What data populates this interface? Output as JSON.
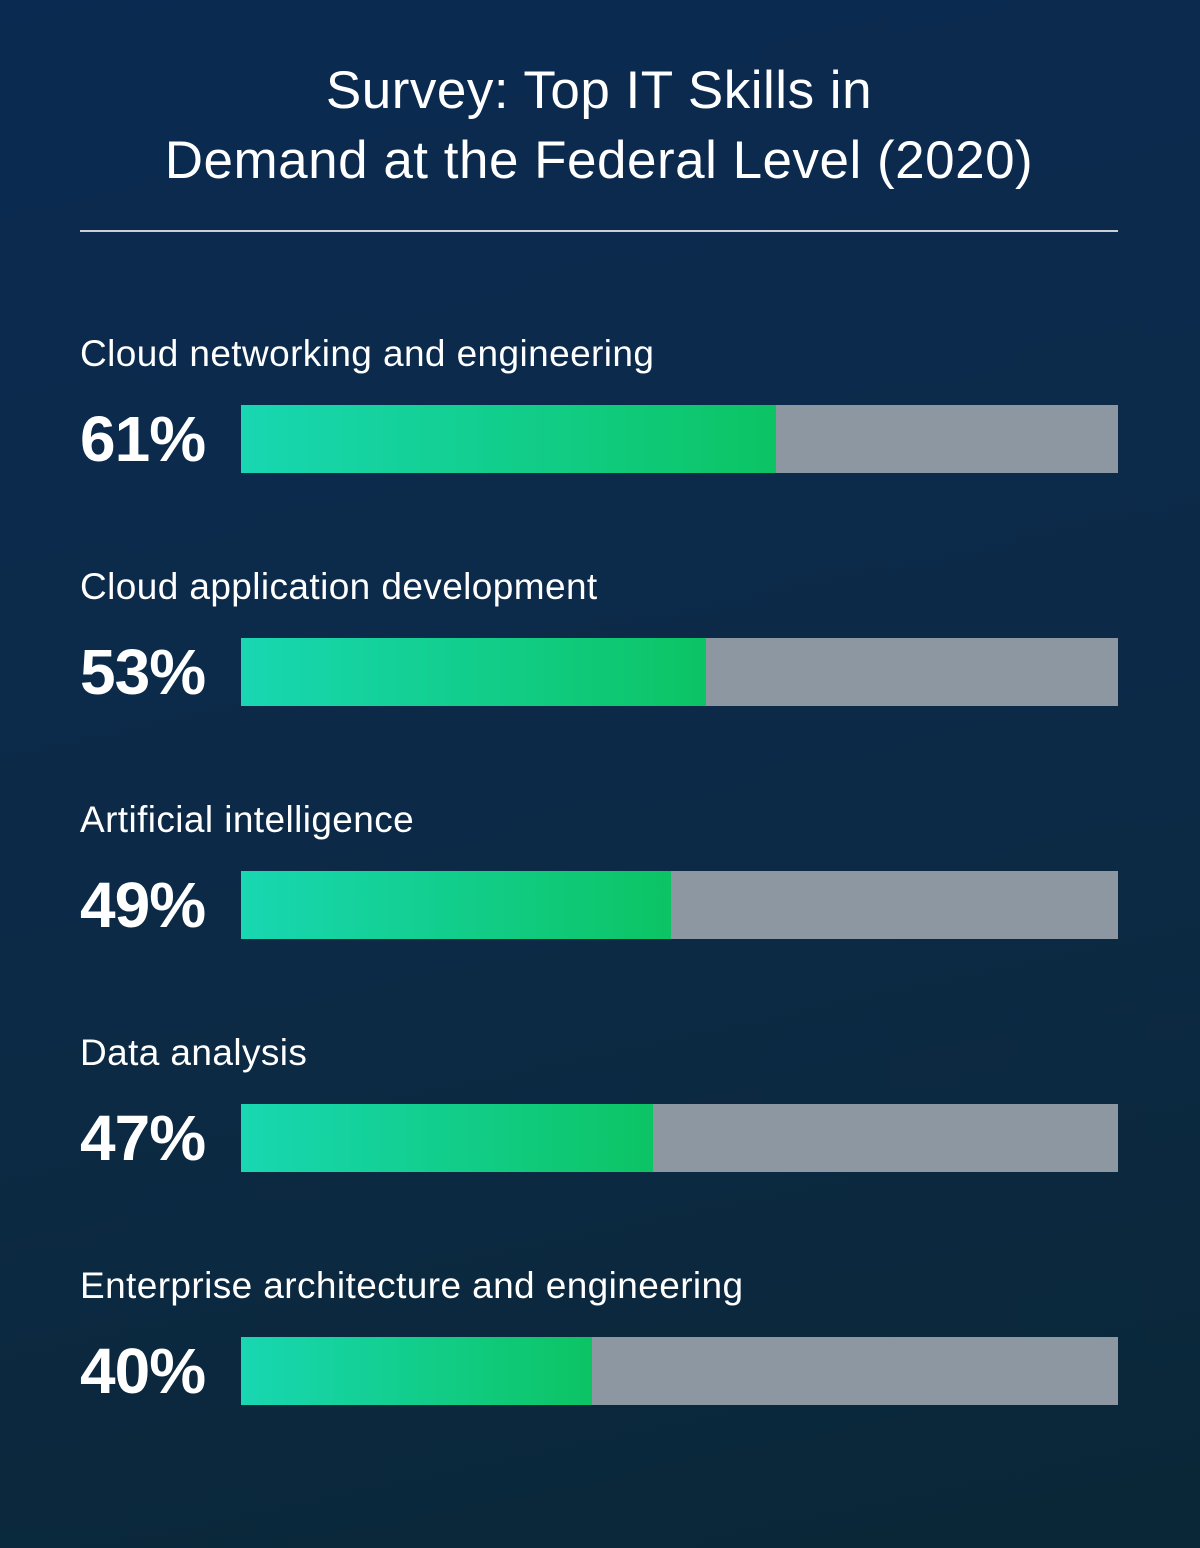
{
  "page": {
    "background_top": "#0b2a51",
    "background_bottom": "#0a2737",
    "divider_color": "#ffffff",
    "text_color": "#ffffff"
  },
  "chart_data": {
    "type": "bar",
    "orientation": "horizontal",
    "title": "Survey: Top IT Skills in Demand at the Federal Level (2020)",
    "title_lines": [
      "Survey: Top IT Skills in",
      "Demand at the Federal Level (2020)"
    ],
    "categories": [
      "Cloud networking and engineering",
      "Cloud application development",
      "Artificial intelligence",
      "Data analysis",
      "Enterprise architecture and engineering"
    ],
    "values": [
      61,
      53,
      49,
      47,
      40
    ],
    "xlim": [
      0,
      100
    ],
    "grid": false,
    "legend": "none",
    "colors": {
      "fill_gradient_start": "#18d7b2",
      "fill_gradient_end": "#0cc464",
      "track": "#8d97a1",
      "label_text": "#ffffff"
    },
    "rows": [
      {
        "label": "Cloud networking and engineering",
        "percent": 61,
        "percent_label": "61%"
      },
      {
        "label": "Cloud application development",
        "percent": 53,
        "percent_label": "53%"
      },
      {
        "label": "Artificial intelligence",
        "percent": 49,
        "percent_label": "49%"
      },
      {
        "label": "Data analysis",
        "percent": 47,
        "percent_label": "47%"
      },
      {
        "label": "Enterprise architecture and engineering",
        "percent": 40,
        "percent_label": "40%"
      }
    ]
  }
}
